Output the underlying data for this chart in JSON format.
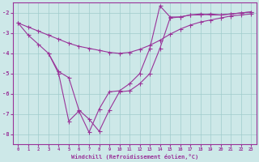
{
  "xlabel": "Windchill (Refroidissement éolien,°C)",
  "xlim": [
    -0.5,
    23.5
  ],
  "ylim": [
    -8.5,
    -1.5
  ],
  "yticks": [
    -8,
    -7,
    -6,
    -5,
    -4,
    -3,
    -2
  ],
  "xticks": [
    0,
    1,
    2,
    3,
    4,
    5,
    6,
    7,
    8,
    9,
    10,
    11,
    12,
    13,
    14,
    15,
    16,
    17,
    18,
    19,
    20,
    21,
    22,
    23
  ],
  "background_color": "#cde8e8",
  "line_color": "#993399",
  "grid_color": "#a0cccc",
  "line1_x": [
    0,
    1,
    2,
    3,
    4,
    5,
    6,
    7,
    8,
    9,
    10,
    11,
    12,
    13,
    14,
    15,
    16,
    17,
    18,
    19,
    20,
    21,
    22,
    23
  ],
  "line1_y": [
    -2.5,
    -2.7,
    -2.9,
    -3.1,
    -3.3,
    -3.5,
    -3.65,
    -3.75,
    -3.85,
    -3.95,
    -4.0,
    -3.95,
    -3.8,
    -3.6,
    -3.35,
    -3.05,
    -2.8,
    -2.6,
    -2.45,
    -2.35,
    -2.25,
    -2.15,
    -2.1,
    -2.05
  ],
  "line2_x": [
    0,
    1,
    2,
    3,
    4,
    5,
    6,
    7,
    8,
    9,
    10,
    11,
    12,
    13,
    14,
    15,
    16,
    17,
    18,
    19,
    20,
    21,
    22,
    23
  ],
  "line2_y": [
    -2.5,
    -3.1,
    -3.55,
    -4.0,
    -4.9,
    -5.2,
    -6.8,
    -7.25,
    -7.85,
    -6.8,
    -5.9,
    -5.85,
    -5.5,
    -5.0,
    -3.75,
    -2.25,
    -2.2,
    -2.1,
    -2.1,
    -2.05,
    -2.1,
    -2.05,
    -2.0,
    -1.95
  ],
  "line3_x": [
    3,
    4,
    5,
    6,
    7,
    8,
    9,
    10,
    11,
    12,
    13,
    14,
    15,
    16,
    17,
    18,
    19,
    20,
    21,
    22,
    23
  ],
  "line3_y": [
    -4.0,
    -5.0,
    -7.35,
    -6.85,
    -7.9,
    -6.75,
    -5.9,
    -5.85,
    -5.5,
    -5.0,
    -3.75,
    -1.65,
    -2.2,
    -2.2,
    -2.1,
    -2.05,
    -2.1,
    -2.1,
    -2.05,
    -2.0,
    -1.95
  ]
}
